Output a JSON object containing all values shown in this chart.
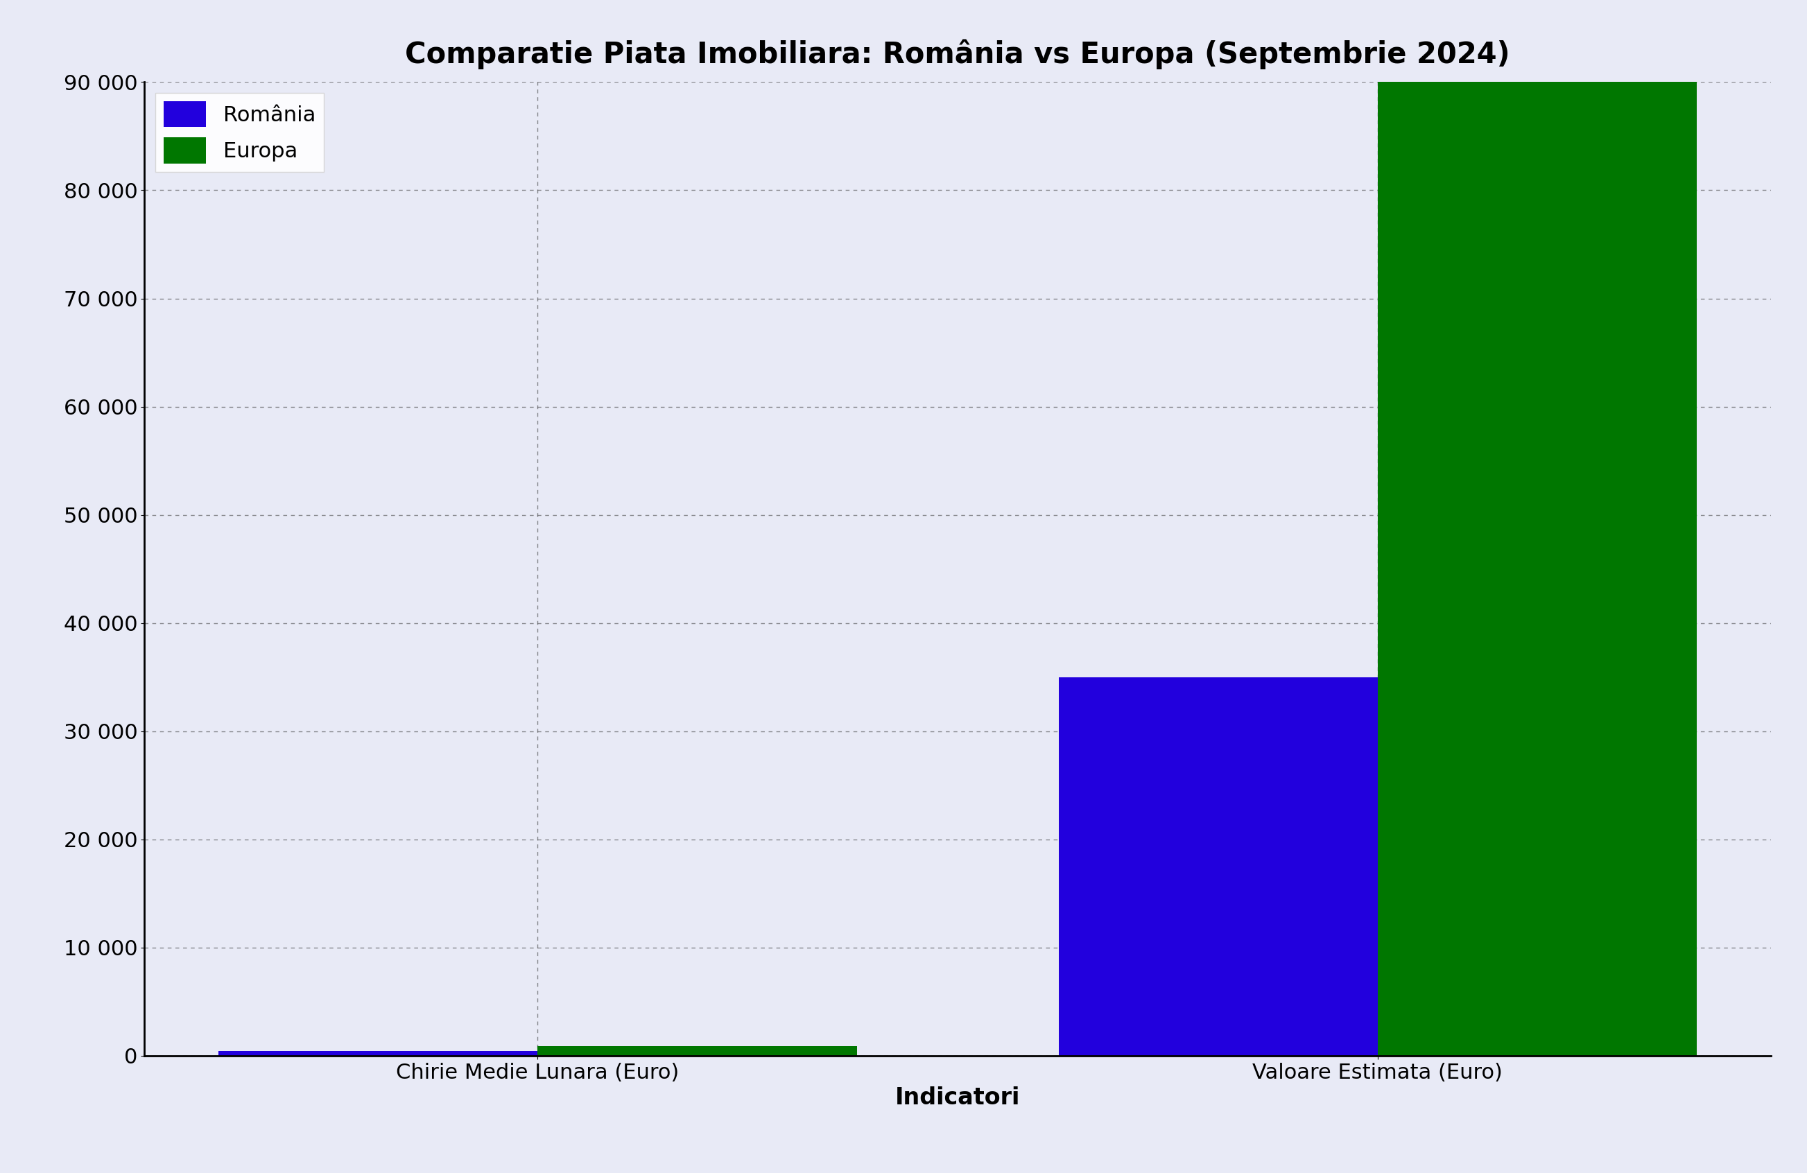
{
  "title": "Comparatie Piata Imobiliara: România vs Europa (Septembrie 2024)",
  "categories": [
    "Chirie Medie Lunara (Euro)",
    "Valoare Estimata (Euro)"
  ],
  "xlabel": "Indicatori",
  "ylabel": "",
  "series": [
    {
      "name": "România",
      "color": "#2200dd",
      "values": [
        450,
        35000
      ]
    },
    {
      "name": "Europa",
      "color": "#007700",
      "values": [
        900,
        90000
      ]
    }
  ],
  "ylim": [
    0,
    90000
  ],
  "yticks": [
    0,
    10000,
    20000,
    30000,
    40000,
    50000,
    60000,
    70000,
    80000,
    90000
  ],
  "background_color": "#e8eaf6",
  "grid_color": "#444444",
  "title_fontsize": 30,
  "label_fontsize": 24,
  "tick_fontsize": 22,
  "legend_fontsize": 22,
  "bar_width": 0.38
}
